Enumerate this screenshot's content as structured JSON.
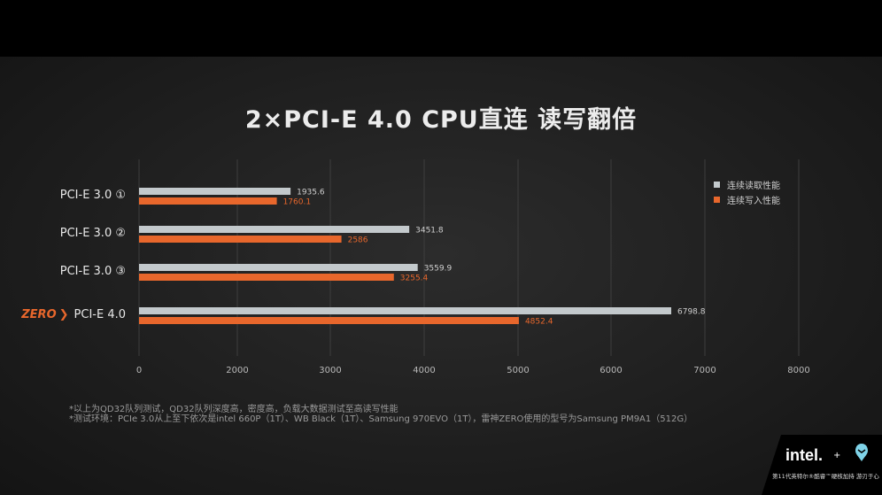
{
  "title": "2×PCI-E 4.0 CPU直连 读写翻倍",
  "chart_data": {
    "type": "bar",
    "orientation": "horizontal",
    "categories": [
      "PCI-E 3.0 ①",
      "PCI-E 3.0 ②",
      "PCI-E 3.0 ③",
      "PCI-E 4.0"
    ],
    "highlight_category": {
      "index": 3,
      "brand": "ZERO",
      "arrow": "❯"
    },
    "series": [
      {
        "name": "连续读取性能",
        "color": "#c3c9cc",
        "values": [
          1935.6,
          3451.8,
          3559.9,
          6798.8
        ],
        "labels": [
          "1935.6",
          "3451.8",
          "3559.9",
          "6798.8"
        ]
      },
      {
        "name": "连续写入性能",
        "color": "#e8672c",
        "values": [
          1760.1,
          2586,
          3255.4,
          4852.4
        ],
        "labels": [
          "1760.1",
          "2586",
          "3255.4",
          "4852.4"
        ]
      }
    ],
    "xticks": [
      "0",
      "2000",
      "3000",
      "4000",
      "5000",
      "6000",
      "7000",
      "8000"
    ],
    "xlim": [
      0,
      8000
    ],
    "grid": "vertical",
    "legend": "top-right",
    "value_label_colors": {
      "read": "#d0d0d0",
      "write": "#e8672c"
    }
  },
  "footnotes": [
    "*以上为QD32队列测试，QD32队列深度高，密度高，负载大数据测试至高读写性能",
    "*测试环境：PCIe 3.0从上至下依次是intel  660P（1T）、WB Black（1T）、Samsung 970EVO（1T），雷神ZERO使用的型号为Samsung PM9A1（512G）"
  ],
  "badge": {
    "intel": "intel.",
    "plus": "+",
    "text": "第11代英特尔®酷睿™硬核加持 游刃于心"
  }
}
